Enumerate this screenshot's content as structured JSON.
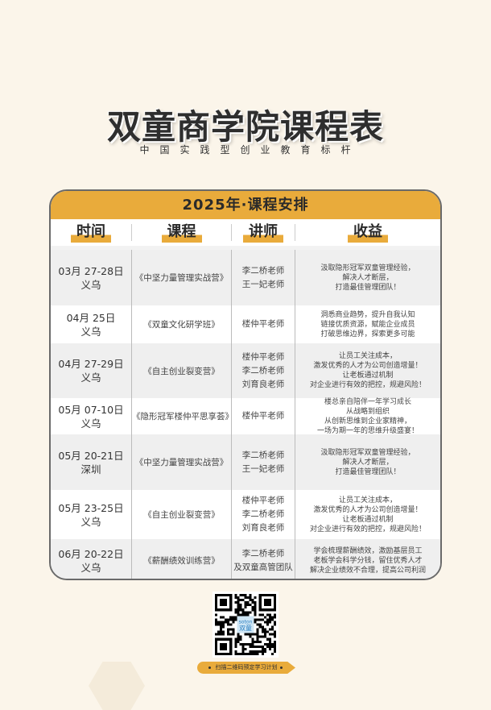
{
  "header": {
    "title": "双童商学院课程表",
    "subtitle": "中国实践型创业教育标杆"
  },
  "table": {
    "band_title": "2025年·课程安排",
    "columns": [
      "时间",
      "课程",
      "讲师",
      "收益"
    ],
    "rows": [
      {
        "date": "03月 27-28日",
        "place": "义乌",
        "course": "《中坚力量管理实战营》",
        "teachers": [
          "李二桥老师",
          "王一妃老师"
        ],
        "benefits": [
          "汲取隐形冠军双童管理经验，",
          "解决人才断层，",
          "打造最佳管理团队！"
        ]
      },
      {
        "date": "04月 25日",
        "place": "义乌",
        "course": "《双童文化研学班》",
        "teachers": [
          "楼仲平老师"
        ],
        "benefits": [
          "洞悉商业趋势，提升自我认知",
          "链接优质资源，赋能企业成员",
          "打破思维边界，探索更多可能"
        ]
      },
      {
        "date": "04月 27-29日",
        "place": "义乌",
        "course": "《自主创业裂变营》",
        "teachers": [
          "楼仲平老师",
          "李二桥老师",
          "刘育良老师"
        ],
        "benefits": [
          "让员工关注成本，",
          "激发优秀的人才为公司创造增量！",
          "让老板通过机制",
          "对企业进行有效的把控，规避风险！"
        ]
      },
      {
        "date": "05月 07-10日",
        "place": "义乌",
        "course": "《隐形冠军楼仲平思享荟》",
        "teachers": [
          "楼仲平老师"
        ],
        "benefits": [
          "楼总亲自陪伴一年学习成长",
          "从战略到组织",
          "从创新思维到企业家精神，",
          "一场为期一年的思维升级盛宴！"
        ]
      },
      {
        "date": "05月 20-21日",
        "place": "深圳",
        "course": "《中坚力量管理实战营》",
        "teachers": [
          "李二桥老师",
          "王一妃老师"
        ],
        "benefits": [
          "汲取隐形冠军双童管理经验，",
          "解决人才断层，",
          "打造最佳管理团队！"
        ]
      },
      {
        "date": "05月 23-25日",
        "place": "义乌",
        "course": "《自主创业裂变营》",
        "teachers": [
          "楼仲平老师",
          "李二桥老师",
          "刘育良老师"
        ],
        "benefits": [
          "让员工关注成本，",
          "激发优秀的人才为公司创造增量！",
          "让老板通过机制",
          "对企业进行有效的把控，规避风险！"
        ]
      },
      {
        "date": "06月 20-22日",
        "place": "义乌",
        "course": "《薪酬绩效训练营》",
        "teachers": [
          "李二桥老师",
          "及双童高管团队"
        ],
        "benefits": [
          "学会梳理薪酬绩效，激励基层员工",
          "老板学会科学分钱，留住优秀人才",
          "解决企业绩效不合理，提高公司利润"
        ]
      }
    ]
  },
  "qr": {
    "logo_text": "soton",
    "logo_cn": "双童"
  },
  "cta": "扫描二维码预定学习计划",
  "colors": {
    "background": "#fbf5ea",
    "accent": "#e9ab3b"
  }
}
